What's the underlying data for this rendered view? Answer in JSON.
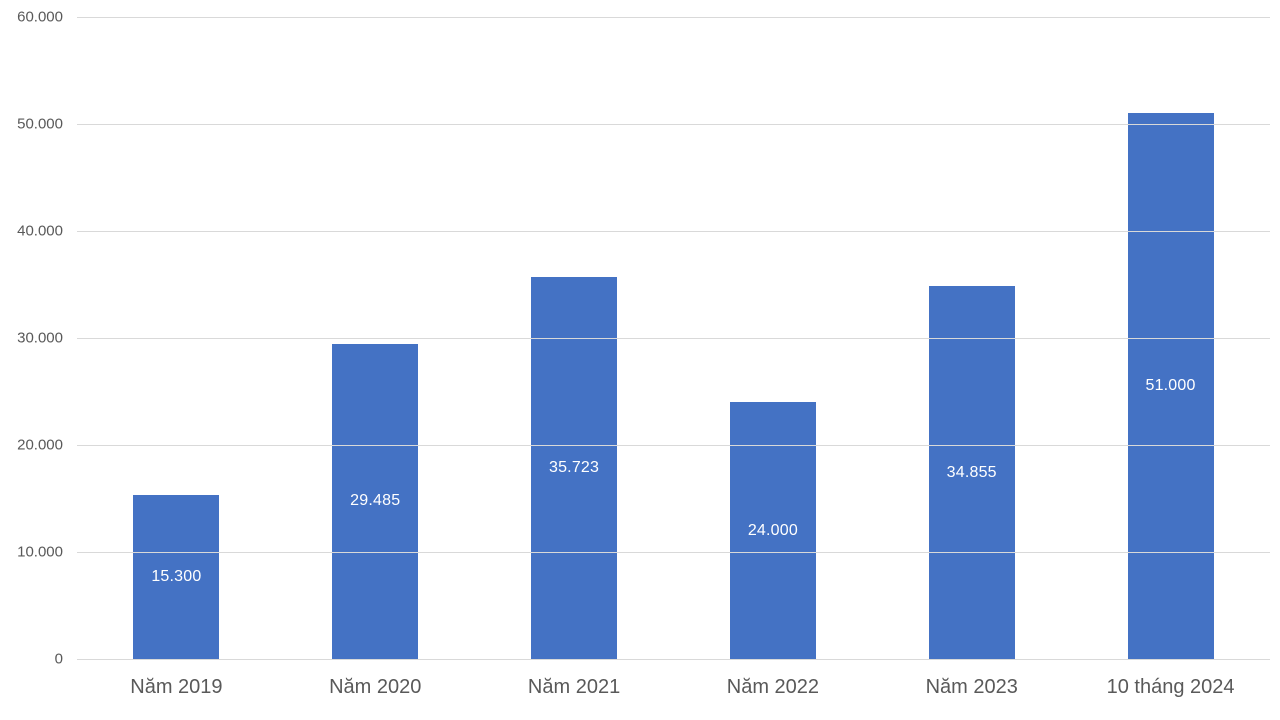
{
  "chart_data": {
    "type": "bar",
    "title": "",
    "xlabel": "",
    "ylabel": "",
    "categories": [
      "Năm 2019",
      "Năm 2020",
      "Năm 2021",
      "Năm 2022",
      "Năm 2023",
      "10 tháng 2024"
    ],
    "values": [
      15300,
      29485,
      35723,
      24000,
      34855,
      51000
    ],
    "value_labels": [
      "15.300",
      "29.485",
      "35.723",
      "24.000",
      "34.855",
      "51.000"
    ],
    "ylim": [
      0,
      60000
    ],
    "ytick_step": 10000,
    "ytick_labels": [
      "0",
      "10.000",
      "20.000",
      "30.000",
      "40.000",
      "50.000",
      "60.000"
    ],
    "grid": true,
    "legend": false,
    "data_label_position": "inside-center",
    "colors": {
      "bar": "#4472C4",
      "data_label": "#FFFFFF",
      "axis_text": "#595959",
      "gridline": "#D9D9D9"
    }
  }
}
